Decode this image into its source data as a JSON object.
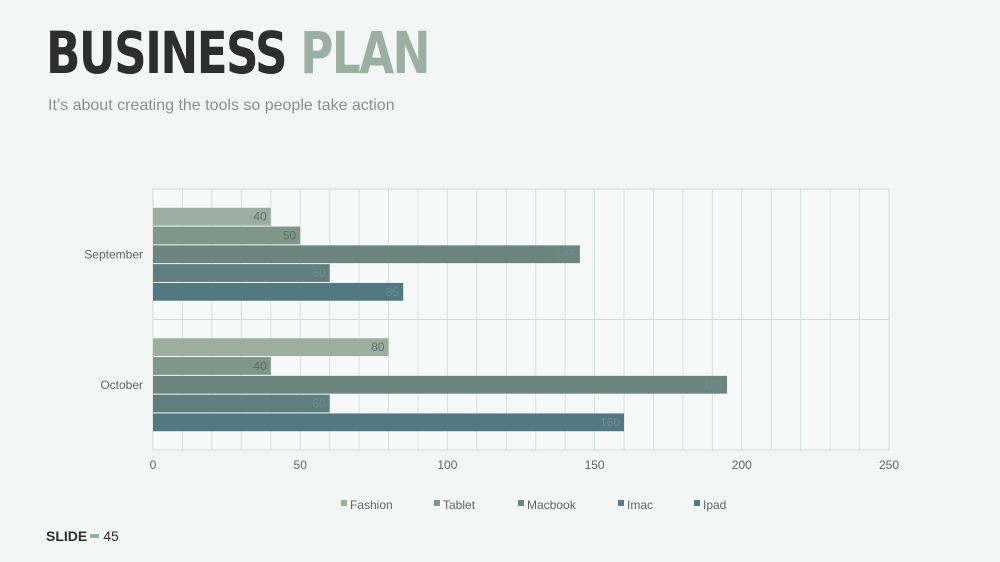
{
  "header": {
    "title_part1": "BUSINESS",
    "title_part2": "PLAN",
    "subtitle": "It’s about creating the tools so people take action"
  },
  "footer": {
    "slide_label": "SLIDE",
    "slide_number": "45"
  },
  "colors": {
    "accent": "#9bb0a0",
    "dark": "#2e2e2e"
  },
  "chart_data": {
    "type": "bar",
    "orientation": "horizontal",
    "categories": [
      "September",
      "October"
    ],
    "series": [
      {
        "name": "Fashion",
        "color": "#9aaf9f",
        "values": [
          40,
          80
        ]
      },
      {
        "name": "Tablet",
        "color": "#7f978b",
        "values": [
          50,
          40
        ]
      },
      {
        "name": "Macbook",
        "color": "#6c857f",
        "values": [
          145,
          195
        ]
      },
      {
        "name": "Imac",
        "color": "#5e7e80",
        "values": [
          60,
          60
        ]
      },
      {
        "name": "Ipad",
        "color": "#527882",
        "values": [
          85,
          160
        ]
      }
    ],
    "xlim": [
      0,
      250
    ],
    "xticks": [
      0,
      50,
      100,
      150,
      200,
      250
    ],
    "grid": true,
    "legend": "bottom",
    "data_labels": true
  }
}
